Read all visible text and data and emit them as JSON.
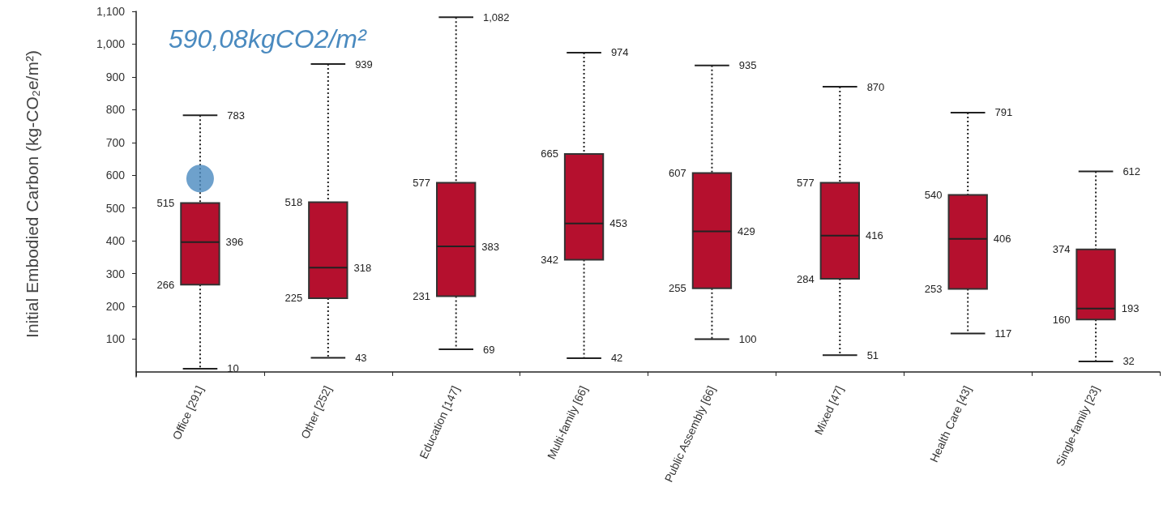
{
  "chart_data": {
    "type": "box",
    "ylabel": "Initial Embodied Carbon (kg-CO₂e/m²)",
    "categories": [
      "Office [291]",
      "Other [252]",
      "Education [147]",
      "Multi-family [66]",
      "Public Assembly [66]",
      "Mixed [47]",
      "Health Care [43]",
      "Single-family [23]"
    ],
    "series": [
      {
        "type": "box",
        "color": "#b5102e",
        "boxes": [
          {
            "low": 10,
            "q1": 266,
            "median": 396,
            "q3": 515,
            "high": 783
          },
          {
            "low": 43,
            "q1": 225,
            "median": 318,
            "q3": 518,
            "high": 939
          },
          {
            "low": 69,
            "q1": 231,
            "median": 383,
            "q3": 577,
            "high": 1082
          },
          {
            "low": 42,
            "q1": 342,
            "median": 453,
            "q3": 665,
            "high": 974
          },
          {
            "low": 100,
            "q1": 255,
            "median": 429,
            "q3": 607,
            "high": 935
          },
          {
            "low": 51,
            "q1": 284,
            "median": 416,
            "q3": 577,
            "high": 870
          },
          {
            "low": 117,
            "q1": 253,
            "median": 406,
            "q3": 540,
            "high": 791
          },
          {
            "low": 32,
            "q1": 160,
            "median": 193,
            "q3": 374,
            "high": 612
          }
        ]
      },
      {
        "type": "scatter",
        "color": "#4a8abf",
        "x": [
          "Office [291]"
        ],
        "values": [
          590
        ],
        "marker": "circle"
      }
    ],
    "annotations": [
      "590,08kgCO2/m²",
      {
        "text": "783",
        "x": "Office [291]",
        "y": 783
      },
      {
        "text": "515",
        "x": "Office [291]",
        "y": 515
      },
      {
        "text": "396",
        "x": "Office [291]",
        "y": 396
      },
      {
        "text": "266",
        "x": "Office [291]",
        "y": 266
      },
      {
        "text": "10",
        "x": "Office [291]",
        "y": 10
      },
      {
        "text": "939",
        "x": "Other [252]",
        "y": 939
      },
      {
        "text": "518",
        "x": "Other [252]",
        "y": 518
      },
      {
        "text": "318",
        "x": "Other [252]",
        "y": 318
      },
      {
        "text": "225",
        "x": "Other [252]",
        "y": 225
      },
      {
        "text": "43",
        "x": "Other [252]",
        "y": 43
      },
      {
        "text": "1,082",
        "x": "Education [147]",
        "y": 1082
      },
      {
        "text": "577",
        "x": "Education [147]",
        "y": 577
      },
      {
        "text": "383",
        "x": "Education [147]",
        "y": 383
      },
      {
        "text": "231",
        "x": "Education [147]",
        "y": 231
      },
      {
        "text": "69",
        "x": "Education [147]",
        "y": 69
      },
      {
        "text": "974",
        "x": "Multi-family [66]",
        "y": 974
      },
      {
        "text": "665",
        "x": "Multi-family [66]",
        "y": 665
      },
      {
        "text": "453",
        "x": "Multi-family [66]",
        "y": 453
      },
      {
        "text": "342",
        "x": "Multi-family [66]",
        "y": 342
      },
      {
        "text": "42",
        "x": "Multi-family [66]",
        "y": 42
      },
      {
        "text": "935",
        "x": "Public Assembly [66]",
        "y": 935
      },
      {
        "text": "607",
        "x": "Public Assembly [66]",
        "y": 607
      },
      {
        "text": "429",
        "x": "Public Assembly [66]",
        "y": 429
      },
      {
        "text": "255",
        "x": "Public Assembly [66]",
        "y": 255
      },
      {
        "text": "100",
        "x": "Public Assembly [66]",
        "y": 100
      },
      {
        "text": "870",
        "x": "Mixed [47]",
        "y": 870
      },
      {
        "text": "577",
        "x": "Mixed [47]",
        "y": 577
      },
      {
        "text": "416",
        "x": "Mixed [47]",
        "y": 416
      },
      {
        "text": "284",
        "x": "Mixed [47]",
        "y": 284
      },
      {
        "text": "51",
        "x": "Mixed [47]",
        "y": 51
      },
      {
        "text": "791",
        "x": "Health Care [43]",
        "y": 791
      },
      {
        "text": "540",
        "x": "Health Care [43]",
        "y": 540
      },
      {
        "text": "406",
        "x": "Health Care [43]",
        "y": 406
      },
      {
        "text": "253",
        "x": "Health Care [43]",
        "y": 253
      },
      {
        "text": "117",
        "x": "Health Care [43]",
        "y": 117
      },
      {
        "text": "612",
        "x": "Single-family [23]",
        "y": 612
      },
      {
        "text": "374",
        "x": "Single-family [23]",
        "y": 374
      },
      {
        "text": "193",
        "x": "Single-family [23]",
        "y": 193
      },
      {
        "text": "160",
        "x": "Single-family [23]",
        "y": 160
      },
      {
        "text": "32",
        "x": "Single-family [23]",
        "y": 32
      }
    ],
    "ylim": [
      -15,
      1100
    ],
    "yticks": [
      {
        "value": 100,
        "label": "100"
      },
      {
        "value": 200,
        "label": "200"
      },
      {
        "value": 300,
        "label": "300"
      },
      {
        "value": 400,
        "label": "400"
      },
      {
        "value": 500,
        "label": "500"
      },
      {
        "value": 600,
        "label": "600"
      },
      {
        "value": 700,
        "label": "700"
      },
      {
        "value": 800,
        "label": "800"
      },
      {
        "value": 900,
        "label": "900"
      },
      {
        "value": 1000,
        "label": "1,000"
      },
      {
        "value": 1100,
        "label": "1,100"
      }
    ],
    "grid": false,
    "line_style": "dotted"
  }
}
